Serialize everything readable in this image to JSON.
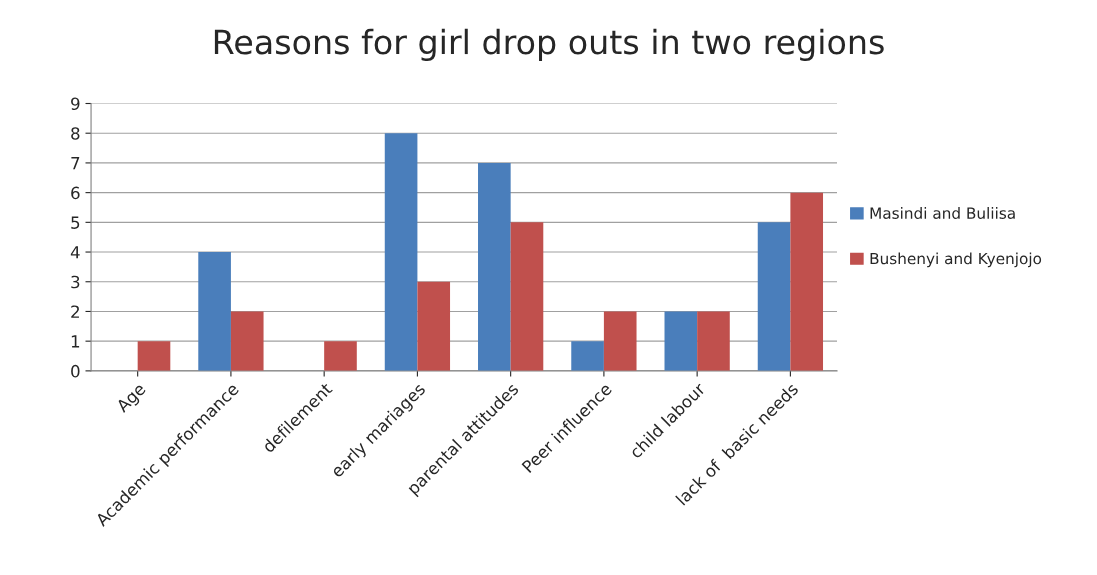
{
  "chart_data": {
    "type": "bar",
    "title": "Reasons for girl drop outs in two regions",
    "categories": [
      "Age",
      "Academic performance",
      "defilement",
      "early mariages",
      "parental attitudes",
      "Peer influence",
      "child labour",
      "lack of  basic needs"
    ],
    "series": [
      {
        "name": "Masindi and Buliisa",
        "color": "#4a7ebb",
        "values": [
          0,
          4,
          0,
          8,
          7,
          1,
          2,
          5
        ]
      },
      {
        "name": "Bushenyi and Kyenjojo",
        "color": "#c0504d",
        "values": [
          1,
          2,
          1,
          3,
          5,
          2,
          2,
          6
        ]
      }
    ],
    "ylim": [
      0,
      9
    ],
    "yticks": [
      0,
      1,
      2,
      3,
      4,
      5,
      6,
      7,
      8,
      9
    ],
    "grid": "y",
    "legend": "right"
  }
}
